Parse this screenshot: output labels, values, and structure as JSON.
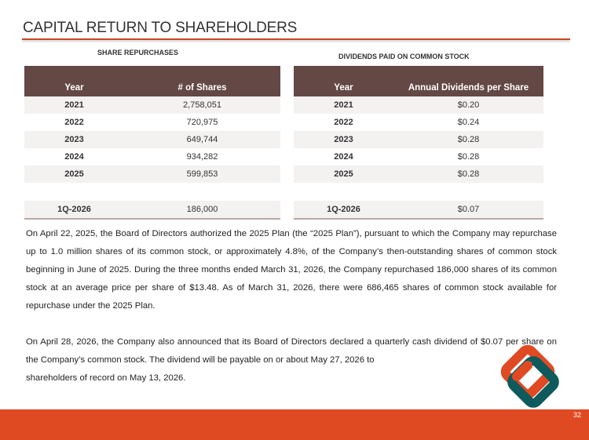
{
  "title": "CAPITAL RETURN TO SHAREHOLDERS",
  "repurchases": {
    "caption": "SHARE REPURCHASES",
    "headers": [
      "Year",
      "# of Shares"
    ],
    "rows": [
      [
        "2021",
        "2,758,051"
      ],
      [
        "2022",
        "720,975"
      ],
      [
        "2023",
        "649,744"
      ],
      [
        "2024",
        "934,282"
      ],
      [
        "2025",
        "599,853"
      ]
    ],
    "quarter": [
      "1Q-2026",
      "186,000"
    ]
  },
  "dividends": {
    "caption": "DIVIDENDS PAID ON COMMON STOCK",
    "headers": [
      "Year",
      "Annual Dividends per Share"
    ],
    "rows": [
      [
        "2021",
        "$0.20"
      ],
      [
        "2022",
        "$0.24"
      ],
      [
        "2023",
        "$0.28"
      ],
      [
        "2024",
        "$0.28"
      ],
      [
        "2025",
        "$0.28"
      ]
    ],
    "quarter": [
      "1Q-2026",
      "$0.07"
    ]
  },
  "paragraphs": [
    "On April 22, 2025, the Board of Directors authorized the 2025 Plan (the “2025 Plan”), pursuant to which the Company may repurchase up to 1.0 million shares of its common stock, or approximately 4.8%, of the Company’s then-outstanding shares of common stock beginning in June of 2025. During the three months ended March 31, 2026, the Company repurchased 186,000 shares of its common stock at an average price per share of $13.48. As of March 31, 2026, there were 686,465 shares of common stock available for repurchase under the 2025 Plan.",
    "On April 28, 2026, the Company also announced that its Board of Directors declared a quarterly cash dividend of $0.07 per share on the Company’s common stock. The dividend will be payable on or about May 27, 2026 to",
    "shareholders of record on May 13, 2026."
  ],
  "page_number": "32",
  "colors": {
    "header": "#634846",
    "accent": "#e04a23",
    "teal": "#0e5a5c"
  }
}
